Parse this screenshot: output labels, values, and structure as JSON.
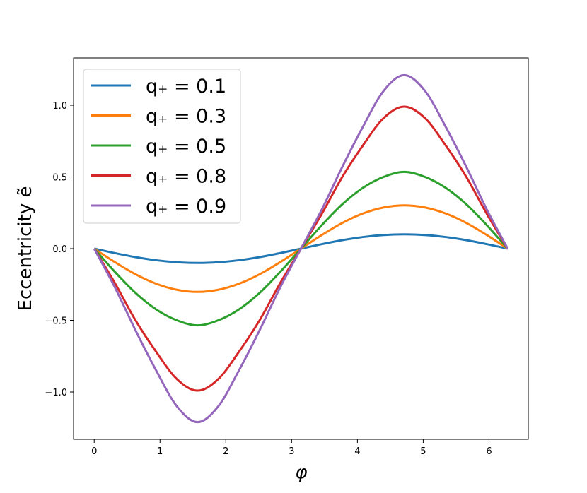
{
  "chart_data": {
    "type": "line",
    "title": "",
    "xlabel": "φ",
    "ylabel": "Eccentricity ẽ",
    "xlim": [
      -0.314,
      6.597
    ],
    "ylim": [
      -1.33,
      1.33
    ],
    "xticks": [
      0,
      1,
      2,
      3,
      4,
      5,
      6
    ],
    "xtick_labels": [
      "0",
      "1",
      "2",
      "3",
      "4",
      "5",
      "6"
    ],
    "yticks": [
      -1.0,
      -0.5,
      0.0,
      0.5,
      1.0
    ],
    "ytick_labels": [
      "−1.0",
      "−0.5",
      "0.0",
      "0.5",
      "1.0"
    ],
    "grid": false,
    "legend_position": "upper-left",
    "x": [
      0,
      0.314,
      0.628,
      0.942,
      1.257,
      1.571,
      1.885,
      2.199,
      2.513,
      2.827,
      3.142,
      3.456,
      3.77,
      4.084,
      4.398,
      4.712,
      5.027,
      5.341,
      5.655,
      5.969,
      6.283
    ],
    "series": [
      {
        "name": "q₊ = 0.1",
        "color": "#1f77b4",
        "values": [
          0,
          -0.031,
          -0.059,
          -0.081,
          -0.095,
          -0.1,
          -0.095,
          -0.081,
          -0.059,
          -0.031,
          0,
          0.031,
          0.059,
          0.081,
          0.095,
          0.1,
          0.095,
          0.081,
          0.059,
          0.031,
          0
        ]
      },
      {
        "name": "q₊ = 0.3",
        "color": "#ff7f0e",
        "values": [
          0,
          -0.094,
          -0.179,
          -0.245,
          -0.287,
          -0.302,
          -0.287,
          -0.245,
          -0.179,
          -0.094,
          0,
          0.094,
          0.179,
          0.245,
          0.287,
          0.302,
          0.287,
          0.245,
          0.179,
          0.094,
          0
        ]
      },
      {
        "name": "q₊ = 0.5",
        "color": "#2ca02c",
        "values": [
          0,
          -0.162,
          -0.309,
          -0.424,
          -0.5,
          -0.535,
          -0.5,
          -0.424,
          -0.309,
          -0.162,
          0,
          0.162,
          0.309,
          0.424,
          0.5,
          0.535,
          0.5,
          0.424,
          0.309,
          0.162,
          0
        ]
      },
      {
        "name": "q₊ = 0.8",
        "color": "#d62728",
        "values": [
          0,
          -0.24,
          -0.5,
          -0.72,
          -0.91,
          -0.99,
          -0.91,
          -0.72,
          -0.5,
          -0.24,
          0,
          0.24,
          0.5,
          0.72,
          0.91,
          0.99,
          0.91,
          0.72,
          0.5,
          0.24,
          0
        ]
      },
      {
        "name": "q₊ = 0.9",
        "color": "#9467bd",
        "values": [
          0,
          -0.27,
          -0.57,
          -0.85,
          -1.1,
          -1.21,
          -1.1,
          -0.85,
          -0.57,
          -0.27,
          0,
          0.27,
          0.57,
          0.85,
          1.1,
          1.21,
          1.1,
          0.85,
          0.57,
          0.27,
          0
        ]
      }
    ]
  }
}
